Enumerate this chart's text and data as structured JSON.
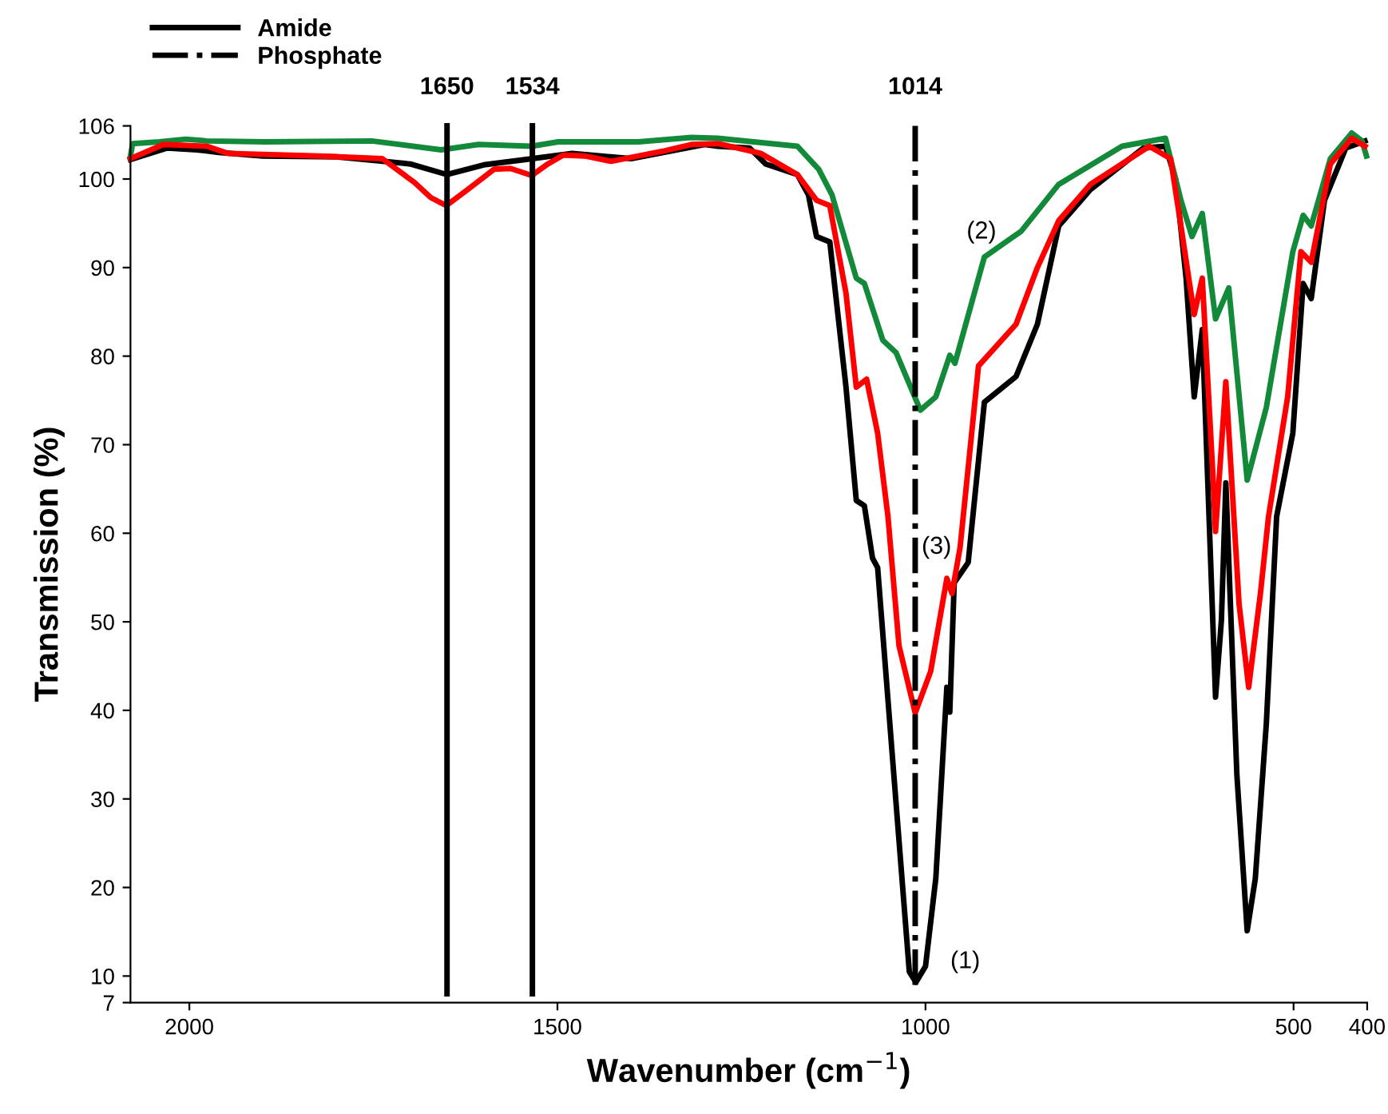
{
  "chart_data": {
    "type": "line",
    "xlabel": "Wavenumber (cm$^{−1}$)",
    "ylabel": "Transmission (%)",
    "xlim": [
      2080,
      400
    ],
    "xticks": [
      2000,
      1500,
      1000,
      500,
      400
    ],
    "ylim": [
      7,
      106
    ],
    "yticks": [
      7,
      10,
      20,
      30,
      40,
      50,
      60,
      70,
      80,
      90,
      100,
      106
    ],
    "grid": false,
    "legend": "top left",
    "marker": "none",
    "series": [
      {
        "name": "(1)",
        "color": "#000000",
        "line_style": "solid",
        "x": [
          2080,
          2030,
          1990,
          1960,
          1900,
          1800,
          1700,
          1650,
          1600,
          1534,
          1480,
          1400,
          1300,
          1282,
          1239,
          1217,
          1174,
          1159,
          1148,
          1130,
          1108,
          1094,
          1083,
          1072,
          1065,
          1043,
          1022,
          1013,
          1000,
          986,
          971,
          967,
          961,
          942,
          920,
          877,
          848,
          819,
          776,
          704,
          674,
          660,
          646,
          635,
          624,
          606,
          598,
          592,
          577,
          563,
          552,
          537,
          523,
          501,
          487,
          476,
          458,
          429,
          403
        ],
        "values": [
          102.2,
          103.5,
          103.3,
          103.0,
          102.6,
          102.5,
          101.7,
          100.5,
          101.6,
          102.3,
          102.9,
          102.3,
          103.9,
          103.7,
          103.5,
          101.7,
          100.5,
          98.2,
          93.5,
          92.9,
          76.5,
          63.7,
          63.1,
          57.2,
          56.1,
          32.7,
          10.5,
          9.3,
          11.1,
          21.0,
          42.6,
          39.8,
          54.4,
          56.7,
          74.8,
          77.7,
          83.6,
          94.7,
          98.8,
          103.5,
          103.7,
          99.9,
          88.8,
          75.4,
          83.0,
          41.5,
          50.2,
          65.7,
          32.7,
          15.1,
          21.0,
          38.5,
          61.9,
          71.3,
          88.2,
          86.5,
          97.6,
          103.5,
          104.3
        ]
      },
      {
        "name": "(2)",
        "color": "#138a3a",
        "line_style": "solid",
        "x": [
          2080,
          2077,
          2041,
          2005,
          1976,
          1897,
          1752,
          1658,
          1607,
          1535,
          1499,
          1390,
          1318,
          1282,
          1174,
          1145,
          1127,
          1094,
          1083,
          1058,
          1040,
          1007,
          986,
          967,
          960,
          920,
          870,
          819,
          733,
          674,
          653,
          638,
          624,
          606,
          588,
          563,
          537,
          501,
          487,
          476,
          450,
          421,
          407,
          401
        ],
        "values": [
          102.6,
          104.0,
          104.2,
          104.5,
          104.3,
          104.2,
          104.3,
          103.3,
          103.9,
          103.7,
          104.2,
          104.2,
          104.7,
          104.6,
          103.7,
          101.1,
          98.2,
          88.8,
          88.2,
          81.8,
          80.4,
          73.9,
          75.4,
          80.1,
          79.2,
          91.2,
          94.1,
          99.4,
          103.7,
          104.6,
          97.6,
          93.5,
          96.1,
          84.2,
          87.7,
          66.0,
          74.2,
          91.8,
          95.9,
          94.7,
          102.3,
          105.2,
          104.3,
          102.6
        ]
      },
      {
        "name": "(3)",
        "color": "#ff0000",
        "line_style": "solid",
        "x": [
          2080,
          2035,
          1976,
          1948,
          1824,
          1738,
          1694,
          1672,
          1651,
          1622,
          1586,
          1564,
          1535,
          1513,
          1492,
          1463,
          1427,
          1354,
          1318,
          1282,
          1224,
          1174,
          1148,
          1130,
          1108,
          1094,
          1080,
          1065,
          1051,
          1036,
          1014,
          993,
          971,
          964,
          953,
          928,
          877,
          848,
          819,
          776,
          696,
          667,
          653,
          635,
          624,
          610,
          606,
          592,
          574,
          561,
          545,
          534,
          508,
          490,
          476,
          450,
          421,
          403
        ],
        "values": [
          102.3,
          103.9,
          103.7,
          102.9,
          102.6,
          102.3,
          99.6,
          97.9,
          97.0,
          98.8,
          101.1,
          101.2,
          100.4,
          101.7,
          102.7,
          102.6,
          102.0,
          103.2,
          103.9,
          104.0,
          102.9,
          100.5,
          97.6,
          97.0,
          87.1,
          76.5,
          77.4,
          71.3,
          61.9,
          47.3,
          39.7,
          44.4,
          54.9,
          53.2,
          58.4,
          78.9,
          83.6,
          90.0,
          95.3,
          99.4,
          103.7,
          102.3,
          94.7,
          84.7,
          88.8,
          67.2,
          60.2,
          77.1,
          52.0,
          42.6,
          53.2,
          61.9,
          75.4,
          91.8,
          90.6,
          101.7,
          104.6,
          103.7
        ]
      },
      {
        "name": "Amide",
        "color": "#000000",
        "line_style": "solid",
        "x": [
          1650,
          1650,
          1600,
          1534,
          1534
        ],
        "values": [
          106,
          8,
          null,
          8,
          106
        ]
      },
      {
        "name": "Phosphate",
        "color": "#000000",
        "line_style": "dashdot",
        "x": [
          1014,
          1014
        ],
        "values": [
          106,
          9
        ]
      }
    ],
    "annotations": [
      {
        "text": "1650",
        "x": 1650,
        "y": 106
      },
      {
        "text": "1534",
        "x": 1534,
        "y": 106
      },
      {
        "text": "1014",
        "x": 1014,
        "y": 106
      }
    ]
  }
}
